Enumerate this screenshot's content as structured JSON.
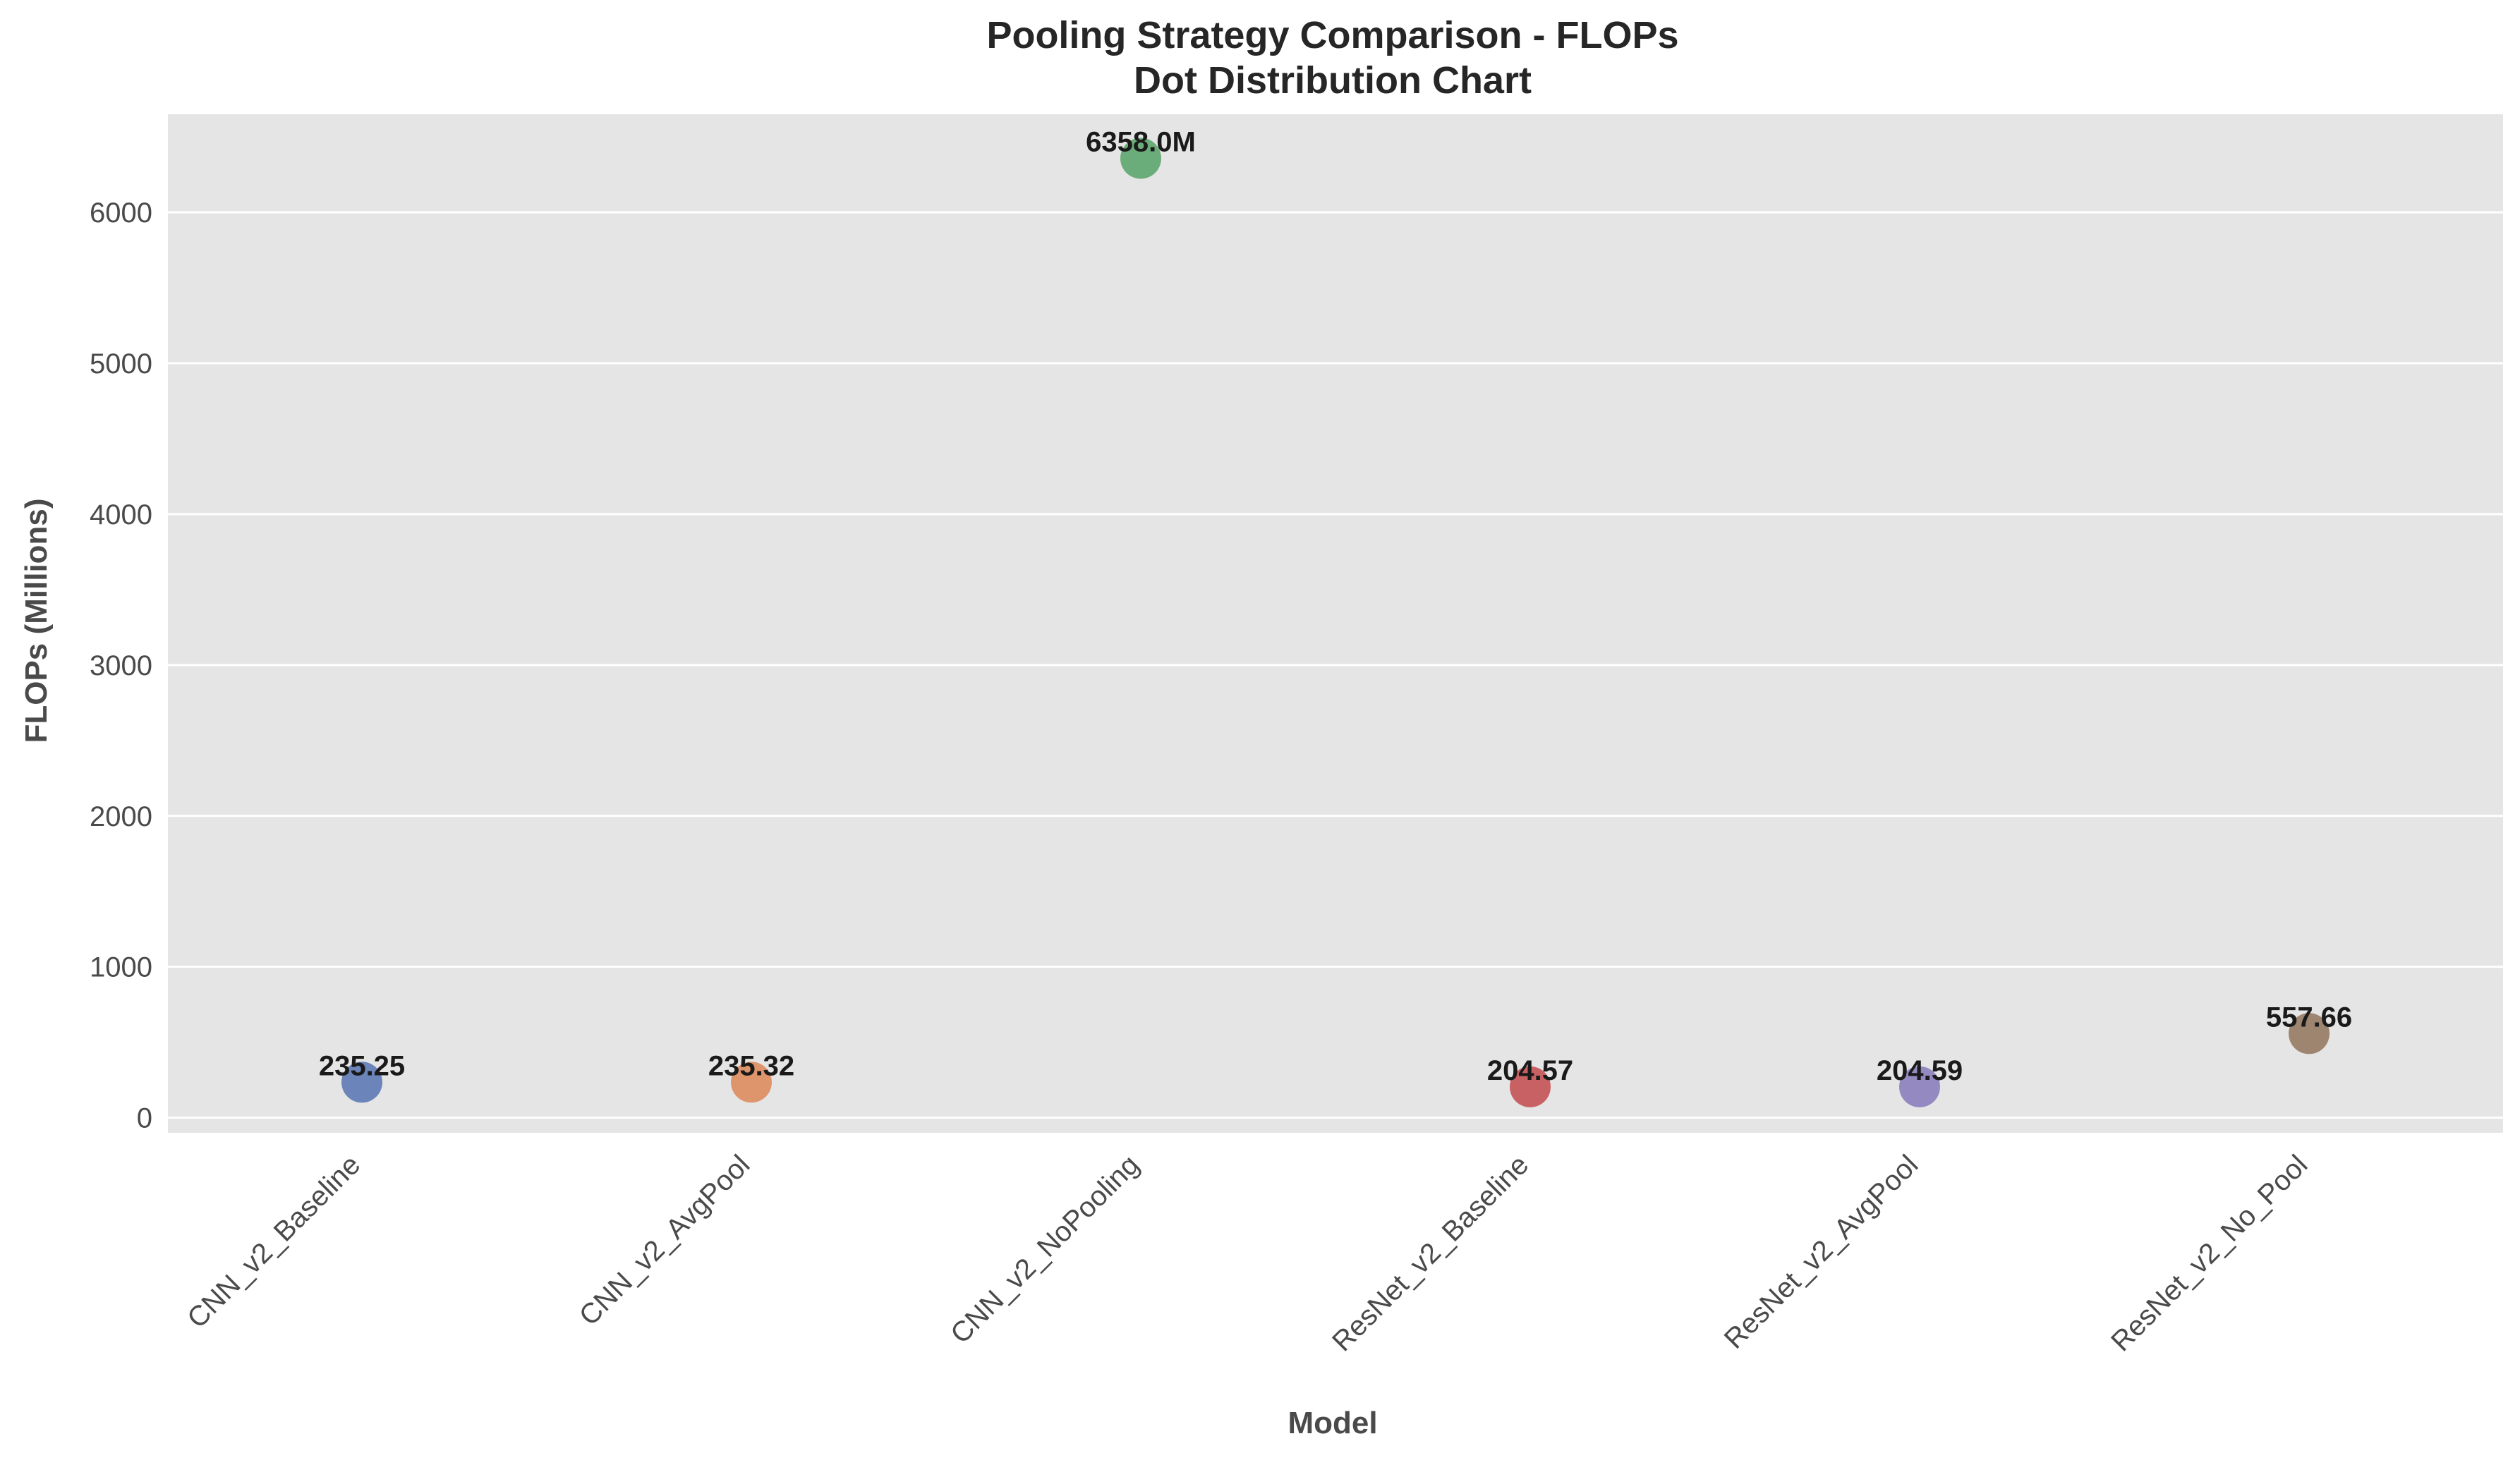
{
  "chart_data": {
    "type": "scatter",
    "title": "Pooling Strategy Comparison - FLOPs",
    "subtitle": "Dot Distribution Chart",
    "xlabel": "Model",
    "ylabel": "FLOPs (Millions)",
    "categories": [
      "CNN_v2_Baseline",
      "CNN_v2_AvgPool",
      "CNN_v2_NoPooling",
      "ResNet_v2_Baseline",
      "ResNet_v2_AvgPool",
      "ResNet_v2_No_Pool"
    ],
    "values": [
      235.25,
      235.32,
      6358.0,
      204.57,
      204.59,
      557.66
    ],
    "data_labels": [
      "235.25",
      "235.32",
      "6358.0M",
      "204.57",
      "204.59",
      "557.66"
    ],
    "colors": [
      "#5a76b3",
      "#dd8a5b",
      "#5aa56b",
      "#c44e52",
      "#8a7cbd",
      "#937860"
    ],
    "ylim": [
      -100,
      6650
    ],
    "yticks": [
      0,
      1000,
      2000,
      3000,
      4000,
      5000,
      6000
    ],
    "grid": true,
    "background": "#e5e5e5"
  }
}
